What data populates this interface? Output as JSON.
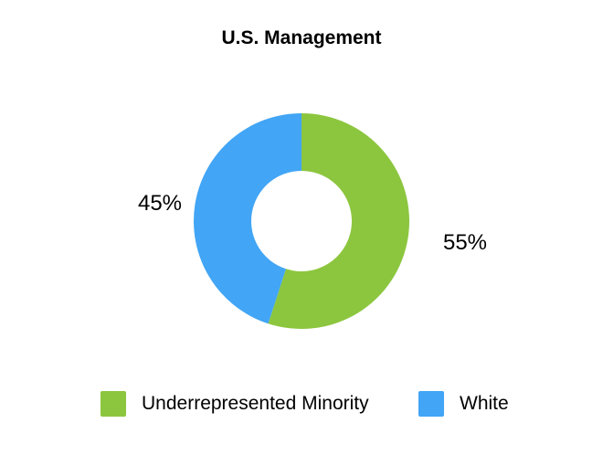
{
  "title": "U.S. Management",
  "chart_data": {
    "type": "pie",
    "donut": true,
    "title": "U.S. Management",
    "labels": [
      "Underrepresented Minority",
      "White"
    ],
    "values": [
      55,
      45
    ],
    "value_labels": [
      "55%",
      "45%"
    ],
    "colors": [
      "#8CC63F",
      "#42A5F5"
    ],
    "start_angle_deg": 0,
    "direction": "clockwise",
    "inner_radius_ratio": 0.47,
    "legend_position": "bottom",
    "background": "#FFFFFF",
    "text_color": "#000000"
  },
  "legend": {
    "items": [
      {
        "label": "Underrepresented Minority",
        "color": "#8CC63F"
      },
      {
        "label": "White",
        "color": "#42A5F5"
      }
    ]
  }
}
